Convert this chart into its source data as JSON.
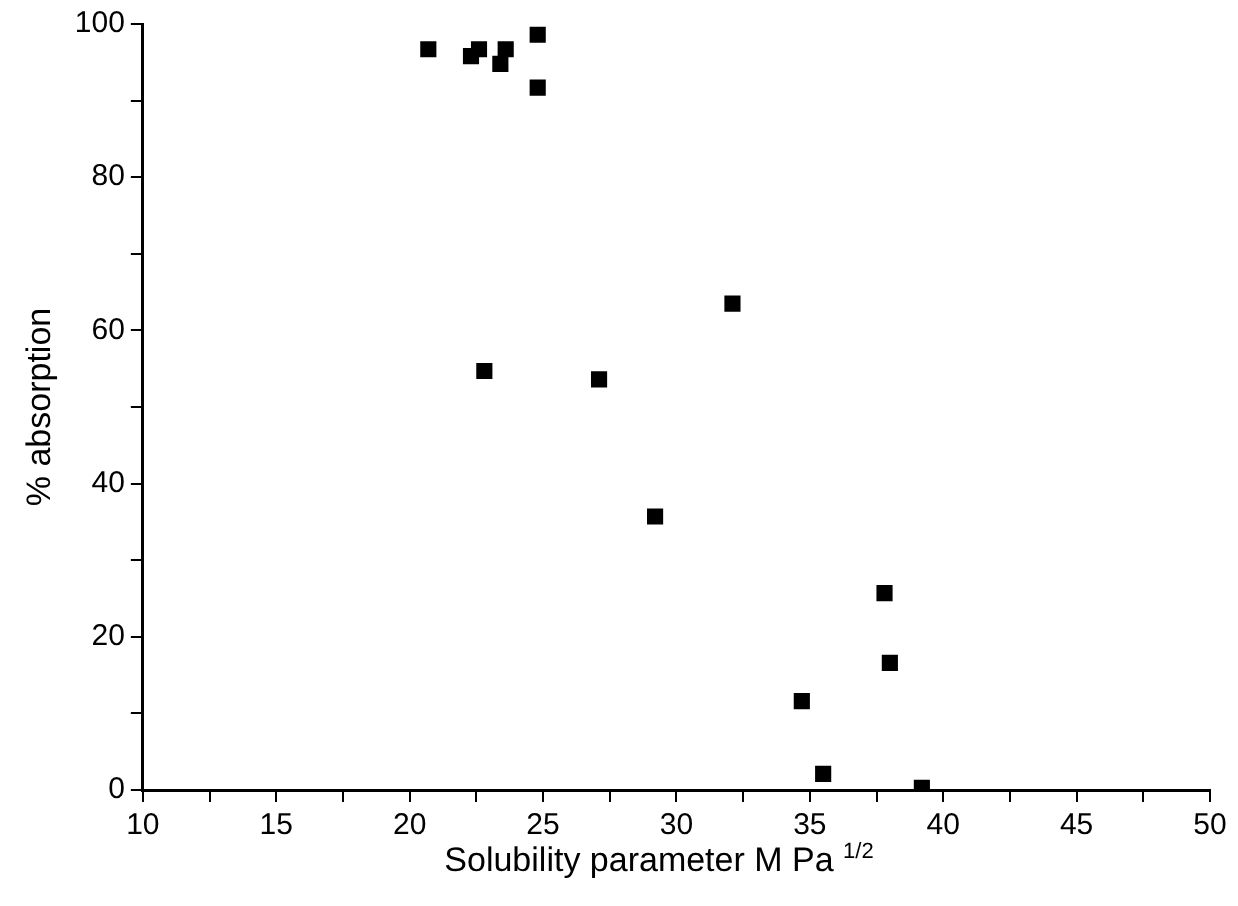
{
  "chart_data": {
    "type": "scatter",
    "xlabel": "Solubility parameter M Pa $^{1/2}$",
    "ylabel": "% absorption",
    "x": [
      20.7,
      22.3,
      22.6,
      23.4,
      23.6,
      24.8,
      24.8,
      22.8,
      27.1,
      32.1,
      29.2,
      37.8,
      38.0,
      34.7,
      35.5,
      39.2
    ],
    "series": [
      {
        "color": "#000000",
        "values": [
          96.7,
          95.8,
          96.7,
          94.8,
          96.7,
          98.6,
          91.7,
          54.7,
          53.6,
          63.5,
          35.7,
          25.7,
          16.6,
          11.6,
          2.1,
          0.3
        ]
      }
    ],
    "marker": "square",
    "grid": false,
    "legend": false,
    "xlim": [
      10,
      50
    ],
    "xticks": [
      10,
      {
        "value": 12.5,
        "label": null
      },
      15,
      {
        "value": 17.5,
        "label": null
      },
      20,
      {
        "value": 22.5,
        "label": null
      },
      25,
      {
        "value": 27.5,
        "label": null
      },
      30,
      {
        "value": 32.5,
        "label": null
      },
      35,
      {
        "value": 37.5,
        "label": null
      },
      40,
      {
        "value": 42.5,
        "label": null
      },
      45,
      {
        "value": 47.5,
        "label": null
      },
      50
    ],
    "ylim": [
      0,
      100
    ],
    "yticks": [
      0,
      {
        "value": 10,
        "label": null
      },
      20,
      {
        "value": 30,
        "label": null
      },
      40,
      {
        "value": 50,
        "label": null
      },
      60,
      {
        "value": 70,
        "label": null
      },
      80,
      {
        "value": 90,
        "label": null
      },
      100
    ]
  }
}
